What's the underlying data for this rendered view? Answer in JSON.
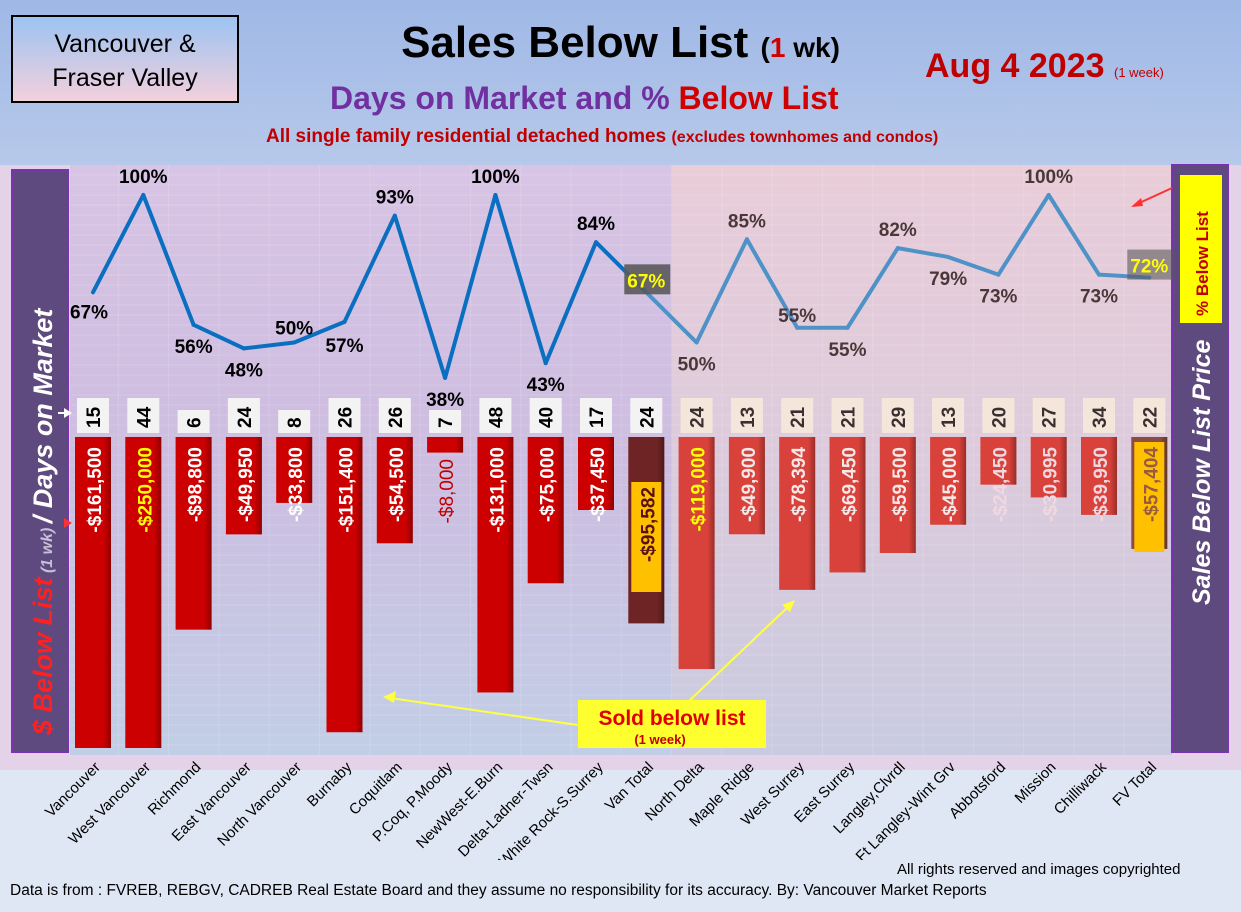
{
  "header": {
    "region_line1": "Vancouver &",
    "region_line2": "Fraser Valley",
    "title": "Sales Below List",
    "title_paren_open": "(",
    "title_num": "1",
    "title_paren_rest": " wk)",
    "subtitle_a": "Days on Market and % ",
    "subtitle_b": "Below List",
    "subtitle2_a": "All single family residential detached homes ",
    "subtitle2_b": "(excludes townhomes and condos)",
    "date": "Aug 4  2023",
    "date_note": "(1 week)"
  },
  "footer": {
    "rights": "All rights reserved and  images copyrighted",
    "source": "Data is from : FVREB, REBGV, CADREB Real Estate Board and they assume no responsibility for its accuracy. By: Vancouver Market Reports"
  },
  "chart_data": {
    "type": "bar",
    "title": "Sales Below List (1 wk)",
    "left_axis_label_a": "$ Below List",
    "left_axis_label_b": " (1 wk) ",
    "left_axis_label_c": "/ Days on Market",
    "right_axis_label": "Sales Below List Price",
    "line_legend": "% Below List",
    "annotation_a": "Sold below list",
    "annotation_b": "(1 week)",
    "categories": [
      "Vancouver",
      "West Vancouver",
      "Richmond",
      "East Vancouver",
      "North Vancouver",
      "Burnaby",
      "Coquitlam",
      "P.Coq, P.Moody",
      "NewWest-E.Burn",
      "Delta-Ladner-Twsn",
      "White Rock-S.Surrey",
      "Van Total",
      "North Delta",
      "Maple Ridge",
      "West Surrey",
      "East Surrey",
      "Langley,Clvrdl",
      "Ft Langley-Wint Grv",
      "Abbotsford",
      "Mission",
      "Chilliwack",
      "FV Total"
    ],
    "series": [
      {
        "name": "% Below List",
        "type": "line",
        "values": [
          67,
          100,
          56,
          48,
          50,
          57,
          93,
          38,
          100,
          43,
          84,
          67,
          50,
          85,
          55,
          55,
          82,
          79,
          73,
          100,
          73,
          72
        ]
      },
      {
        "name": "Days on Market",
        "type": "label",
        "values": [
          15,
          44,
          6,
          24,
          8,
          26,
          26,
          7,
          48,
          40,
          17,
          24,
          24,
          13,
          21,
          21,
          29,
          13,
          20,
          27,
          34,
          22
        ]
      },
      {
        "name": "$ Below List",
        "type": "bar",
        "values": [
          -161500,
          -250000,
          -98800,
          -49950,
          -33800,
          -151400,
          -54500,
          -8000,
          -131000,
          -75000,
          -37450,
          -95582,
          -119000,
          -49900,
          -78394,
          -69450,
          -59500,
          -45000,
          -24450,
          -30995,
          -39950,
          -57404
        ],
        "labels": [
          "-$161,500",
          "-$250,000",
          "-$98,800",
          "-$49,950",
          "-$33,800",
          "-$151,400",
          "-$54,500",
          "-$8,000",
          "-$131,000",
          "-$75,000",
          "-$37,450",
          "-$95,582",
          "-$119,000",
          "-$49,900",
          "-$78,394",
          "-$69,450",
          "-$59,500",
          "-$45,000",
          "-$24,450",
          "-$30,995",
          "-$39,950",
          "-$57,404"
        ]
      }
    ],
    "colors": {
      "van_bar": "#cc0000",
      "van_total_bar": "#6e2424",
      "fv_bar": "#d9423b",
      "fv_total_bar": "#8a4c44",
      "line_van": "#0a6fc0",
      "line_fv": "#4f92c8",
      "total_label_box": "#ffc000"
    }
  }
}
